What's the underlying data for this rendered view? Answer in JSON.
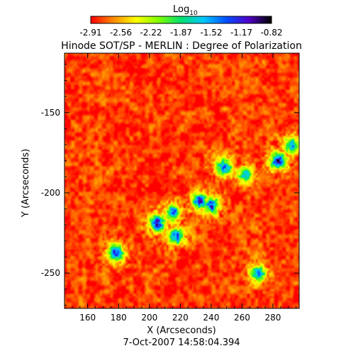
{
  "colorbar": {
    "label_base": "Log",
    "label_sub": "10",
    "ticks": [
      "-2.91",
      "-2.56",
      "-2.22",
      "-1.87",
      "-1.52",
      "-1.17",
      "-0.82"
    ],
    "range": [
      -2.91,
      -0.82
    ],
    "colormap": [
      "#ff0000",
      "#ff8c00",
      "#ffff00",
      "#7fff00",
      "#00e070",
      "#00c8ff",
      "#0050ff",
      "#5000c8",
      "#000000"
    ]
  },
  "plot": {
    "title": "Hinode SOT/SP - MERLIN : Degree of Polarization",
    "xlabel": "X (Arcseconds)",
    "ylabel": "Y (Arcseconds)",
    "xticks": [
      "160",
      "180",
      "200",
      "220",
      "240",
      "260",
      "280"
    ],
    "yticks": [
      "-150",
      "-200",
      "-250"
    ],
    "xlim": [
      145,
      297
    ],
    "ylim": [
      -272,
      -113
    ],
    "timestamp": "7-Oct-2007 14:58:04.394"
  },
  "image_data": {
    "type": "heatmap",
    "units": "log10(degree of polarization)",
    "background_level": -2.8,
    "features": [
      {
        "x": 205,
        "y": -219,
        "peak": -0.9
      },
      {
        "x": 215,
        "y": -212,
        "peak": -1.3
      },
      {
        "x": 232,
        "y": -205,
        "peak": -1.1
      },
      {
        "x": 240,
        "y": -208,
        "peak": -1.0
      },
      {
        "x": 248,
        "y": -184,
        "peak": -1.2
      },
      {
        "x": 262,
        "y": -188,
        "peak": -1.4
      },
      {
        "x": 283,
        "y": -180,
        "peak": -0.85
      },
      {
        "x": 292,
        "y": -170,
        "peak": -1.3
      },
      {
        "x": 178,
        "y": -237,
        "peak": -1.05
      },
      {
        "x": 270,
        "y": -250,
        "peak": -1.35
      },
      {
        "x": 217,
        "y": -227,
        "peak": -1.2
      }
    ]
  }
}
